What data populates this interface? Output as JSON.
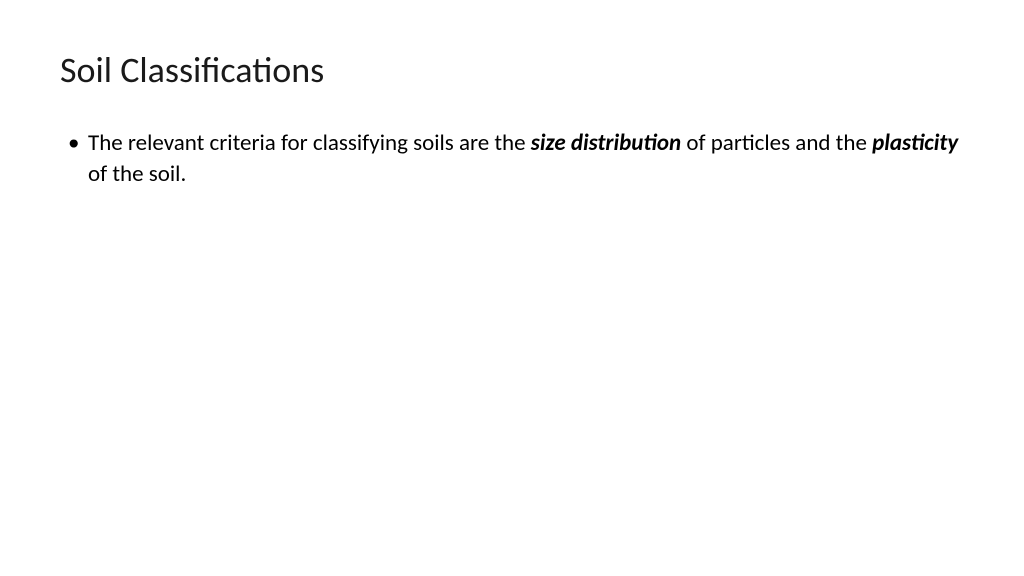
{
  "slide": {
    "title": "Soil Classifications",
    "bullet": {
      "text_parts": [
        {
          "text": "The relevant criteria for classifying soils are the ",
          "style": "normal"
        },
        {
          "text": "size distribution",
          "style": "bold-italic"
        },
        {
          "text": " of particles and the ",
          "style": "normal"
        },
        {
          "text": "plasticity",
          "style": "bold-italic"
        },
        {
          "text": " of the soil.",
          "style": "normal"
        }
      ]
    }
  },
  "styles": {
    "background_color": "#ffffff",
    "text_color": "#000000",
    "title_color": "#1a1a1a",
    "title_fontsize": 36,
    "body_fontsize": 23,
    "font_family": "Calibri"
  }
}
